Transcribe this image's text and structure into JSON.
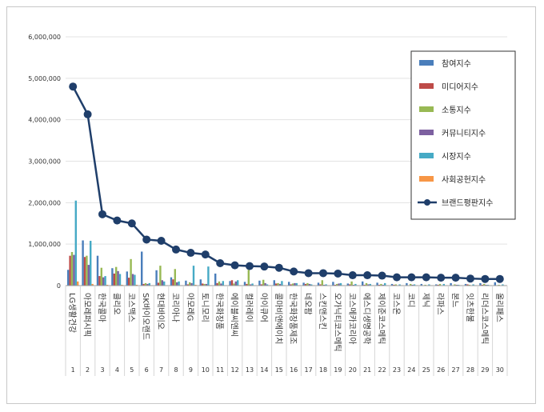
{
  "chart_data": {
    "type": "bar",
    "title": "",
    "xlabel": "",
    "ylabel": "",
    "ylim": [
      0,
      6000000
    ],
    "yticks": [
      "0",
      "1,000,000",
      "2,000,000",
      "3,000,000",
      "4,000,000",
      "5,000,000",
      "6,000,000"
    ],
    "ytick_values": [
      0,
      1000000,
      2000000,
      3000000,
      4000000,
      5000000,
      6000000
    ],
    "rank_numbers": [
      "1",
      "2",
      "3",
      "4",
      "5",
      "6",
      "7",
      "8",
      "9",
      "10",
      "11",
      "12",
      "13",
      "14",
      "15",
      "16",
      "17",
      "18",
      "19",
      "20",
      "21",
      "22",
      "23",
      "24",
      "25",
      "26",
      "27",
      "28",
      "29",
      "30"
    ],
    "categories": [
      "LG생활건강",
      "아모레퍼시픽",
      "한국콜마",
      "클리오",
      "코스맥스",
      "SK바이오랜드",
      "현대바이오",
      "코리아나",
      "아모레G",
      "토니모리",
      "한국화장품",
      "에이블씨엔씨",
      "컬러레이",
      "아이큐어",
      "콜마비앤에이치",
      "한국화장품제조",
      "네오팜",
      "스킨앤스킨",
      "오가닉티코스메틱",
      "코스메카코리아",
      "에스디생명공학",
      "제이준코스메틱",
      "코스온",
      "코디",
      "제닉",
      "라파스",
      "본느",
      "잇츠한불",
      "리더스코스메틱",
      "올리패스"
    ],
    "legend_position": "top-right",
    "series": [
      {
        "name": "참여지수",
        "color": "#4a7ebb",
        "type": "bar",
        "values": [
          380000,
          1090000,
          720000,
          420000,
          340000,
          820000,
          370000,
          200000,
          120000,
          150000,
          290000,
          110000,
          90000,
          120000,
          130000,
          90000,
          70000,
          70000,
          90000,
          50000,
          100000,
          70000,
          40000,
          60000,
          40000,
          30000,
          60000,
          40000,
          60000,
          80000
        ]
      },
      {
        "name": "미디어지수",
        "color": "#be4b48",
        "type": "bar",
        "values": [
          720000,
          690000,
          230000,
          290000,
          190000,
          40000,
          70000,
          150000,
          30000,
          50000,
          60000,
          130000,
          40000,
          30000,
          50000,
          30000,
          40000,
          30000,
          20000,
          30000,
          20000,
          20000,
          20000,
          10000,
          10000,
          20000,
          10000,
          30000,
          20000,
          10000
        ]
      },
      {
        "name": "소통지수",
        "color": "#98b954",
        "type": "bar",
        "values": [
          810000,
          720000,
          430000,
          450000,
          640000,
          60000,
          480000,
          400000,
          80000,
          40000,
          100000,
          50000,
          380000,
          140000,
          60000,
          50000,
          60000,
          130000,
          40000,
          100000,
          60000,
          40000,
          30000,
          40000,
          20000,
          40000,
          30000,
          20000,
          40000,
          20000
        ]
      },
      {
        "name": "커뮤니티지수",
        "color": "#7d60a0",
        "type": "bar",
        "values": [
          740000,
          500000,
          200000,
          350000,
          280000,
          40000,
          130000,
          80000,
          60000,
          40000,
          50000,
          100000,
          30000,
          60000,
          40000,
          60000,
          40000,
          20000,
          50000,
          20000,
          30000,
          20000,
          10000,
          20000,
          10000,
          10000,
          20000,
          10000,
          20000,
          10000
        ]
      },
      {
        "name": "시장지수",
        "color": "#46aac5",
        "type": "bar",
        "values": [
          2050000,
          1080000,
          230000,
          280000,
          260000,
          60000,
          100000,
          100000,
          480000,
          460000,
          110000,
          130000,
          50000,
          30000,
          110000,
          60000,
          30000,
          30000,
          60000,
          40000,
          40000,
          60000,
          30000,
          30000,
          30000,
          40000,
          20000,
          30000,
          20000,
          30000
        ]
      },
      {
        "name": "사회공헌지수",
        "color": "#f79646",
        "type": "bar",
        "values": [
          100000,
          40000,
          20000,
          20000,
          20000,
          10000,
          10000,
          10000,
          20000,
          10000,
          10000,
          10000,
          10000,
          10000,
          10000,
          10000,
          10000,
          10000,
          10000,
          10000,
          10000,
          10000,
          10000,
          10000,
          10000,
          10000,
          10000,
          10000,
          10000,
          10000
        ]
      },
      {
        "name": "브랜드평판지수",
        "color": "#1f3e6a",
        "type": "line",
        "values": [
          4800000,
          4130000,
          1720000,
          1570000,
          1500000,
          1110000,
          1080000,
          870000,
          790000,
          750000,
          540000,
          490000,
          470000,
          460000,
          430000,
          340000,
          300000,
          300000,
          290000,
          250000,
          250000,
          240000,
          200000,
          200000,
          200000,
          190000,
          190000,
          170000,
          160000,
          160000
        ]
      }
    ]
  }
}
